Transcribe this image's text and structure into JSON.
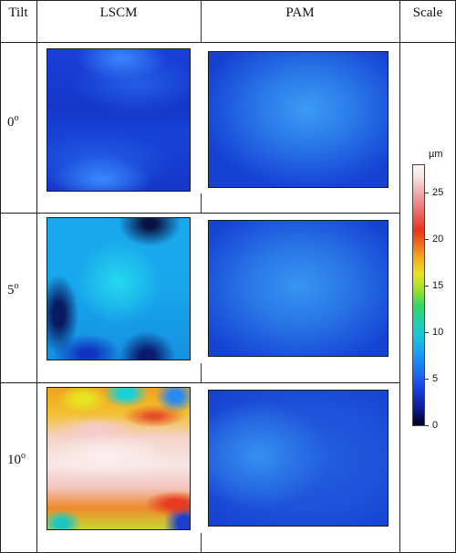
{
  "table": {
    "headers": {
      "tilt": "Tilt",
      "lscm": "LSCM",
      "pam": "PAM",
      "scale": "Scale"
    },
    "rows": [
      {
        "tilt_value": "0",
        "tilt_unit": "o"
      },
      {
        "tilt_value": "5",
        "tilt_unit": "o"
      },
      {
        "tilt_value": "10",
        "tilt_unit": "o"
      }
    ]
  },
  "colorbar": {
    "unit": "µm",
    "ticks": [
      "25",
      "20",
      "15",
      "10",
      "5",
      "0"
    ],
    "min": 0,
    "max": 28
  }
}
